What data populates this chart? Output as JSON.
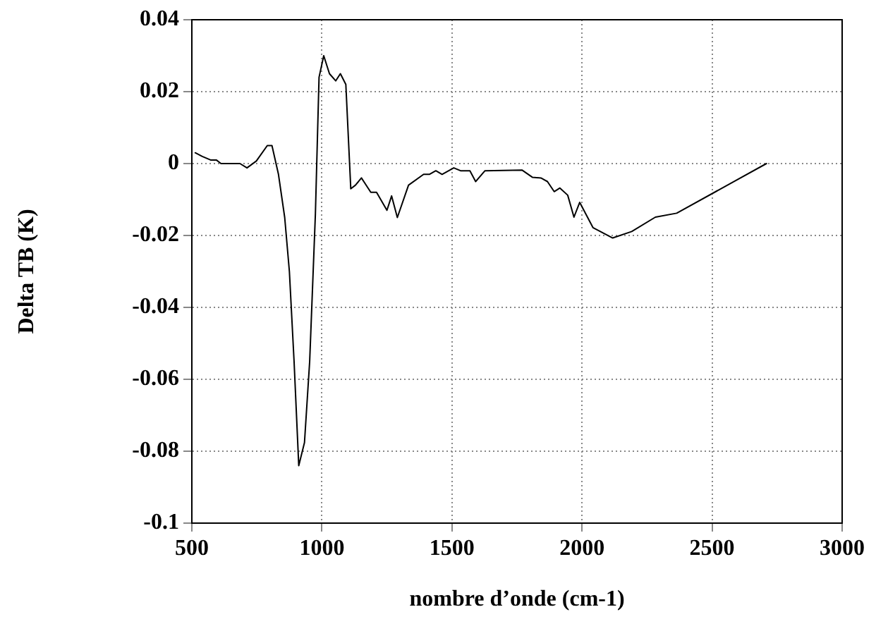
{
  "chart_data": {
    "type": "line",
    "xlabel": "nombre d’onde (cm-1)",
    "ylabel": "Delta TB (K)",
    "xlim": [
      500,
      3000
    ],
    "xticks": [
      500,
      1000,
      1500,
      2000,
      2500,
      3000
    ],
    "ylim": [
      -0.1,
      0.04
    ],
    "yticks": [
      -0.1,
      -0.08,
      -0.06,
      -0.04,
      -0.02,
      0,
      0.02,
      0.04
    ],
    "grid": true,
    "legend": false,
    "marker": "none",
    "line_style": "solid",
    "series": [
      {
        "color": "#000000",
        "x": [
          513,
          540,
          572,
          594,
          612,
          685,
          712,
          748,
          790,
          808,
          833,
          857,
          875,
          893,
          911,
          933,
          953,
          975,
          989,
          1007,
          1029,
          1053,
          1071,
          1092,
          1111,
          1129,
          1152,
          1188,
          1210,
          1250,
          1268,
          1290,
          1333,
          1391,
          1413,
          1438,
          1462,
          1507,
          1533,
          1569,
          1591,
          1627,
          1769,
          1809,
          1842,
          1867,
          1893,
          1915,
          1945,
          1969,
          1991,
          2042,
          2118,
          2191,
          2282,
          2364,
          2709
        ],
        "values": [
          0.003,
          0.002,
          0.001,
          0.001,
          0,
          0,
          -0.0012,
          0.0007,
          0.005,
          0.005,
          -0.003,
          -0.015,
          -0.03,
          -0.055,
          -0.084,
          -0.0776,
          -0.055,
          -0.014,
          0.024,
          0.03,
          0.025,
          0.023,
          0.025,
          0.022,
          -0.007,
          -0.006,
          -0.004,
          -0.008,
          -0.008,
          -0.013,
          -0.009,
          -0.015,
          -0.006,
          -0.003,
          -0.003,
          -0.002,
          -0.003,
          -0.0012,
          -0.002,
          -0.002,
          -0.005,
          -0.002,
          -0.0018,
          -0.0038,
          -0.004,
          -0.005,
          -0.0078,
          -0.0068,
          -0.0088,
          -0.0149,
          -0.0108,
          -0.0178,
          -0.0207,
          -0.0189,
          -0.0149,
          -0.0138,
          0
        ]
      }
    ]
  }
}
